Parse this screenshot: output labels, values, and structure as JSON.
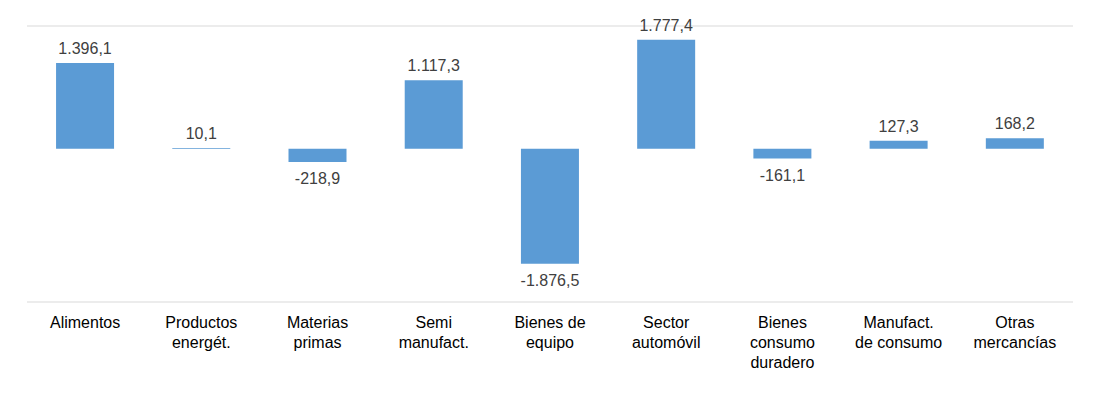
{
  "chart_data": {
    "type": "bar",
    "categories": [
      "Alimentos",
      "Productos energét.",
      "Materias primas",
      "Semi manufact.",
      "Bienes de equipo",
      "Sector automóvil",
      "Bienes consumo duradero",
      "Manufact. de consumo",
      "Otras mercancías"
    ],
    "values": [
      1396.1,
      10.1,
      -218.9,
      1117.3,
      -1876.5,
      1777.4,
      -161.1,
      127.3,
      168.2
    ],
    "value_labels": [
      "1.396,1",
      "10,1",
      "-218,9",
      "1.117,3",
      "-1.876,5",
      "1.777,4",
      "-161,1",
      "127,3",
      "168,2"
    ],
    "color": "#5b9bd5",
    "ylim": [
      -2500,
      2000
    ],
    "yticks": [
      0
    ],
    "grid": true,
    "data_labels": true,
    "tick_labels": "x"
  }
}
